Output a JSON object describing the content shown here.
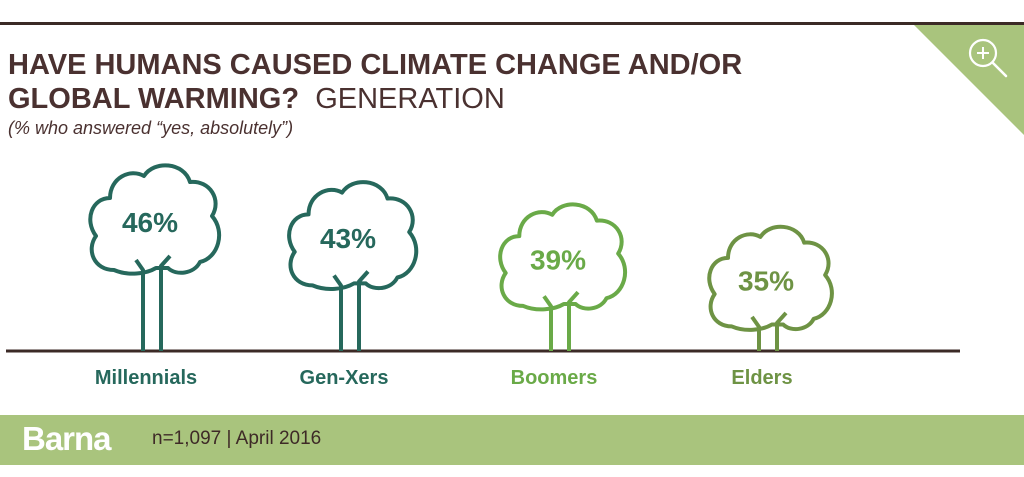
{
  "header": {
    "title": "HAVE HUMANS CAUSED CLIMATE CHANGE AND/OR GLOBAL WARMING?",
    "title_suffix": "GENERATION",
    "subtitle": "(% who answered “yes, absolutely”)"
  },
  "icons": {
    "zoom": "zoom-in-icon"
  },
  "chart_data": {
    "type": "bar",
    "title": "HAVE HUMANS CAUSED CLIMATE CHANGE AND/OR GLOBAL WARMING? GENERATION",
    "subtitle": "(% who answered “yes, absolutely”)",
    "categories": [
      "Millennials",
      "Gen-Xers",
      "Boomers",
      "Elders"
    ],
    "values": [
      46,
      43,
      39,
      35
    ],
    "value_labels": [
      "46%",
      "43%",
      "39%",
      "35%"
    ],
    "unit": "%",
    "colors": [
      "#26685c",
      "#26685c",
      "#6aaa48",
      "#6e9344"
    ],
    "label_colors": [
      "#26685c",
      "#26685c",
      "#6aaa48",
      "#6e9344"
    ],
    "baseline_color": "#3b2a26",
    "mark": "tree-icon"
  },
  "footer": {
    "brand": "Barna",
    "meta": "n=1,097  |  April 2016",
    "background": "#a9c47d"
  }
}
